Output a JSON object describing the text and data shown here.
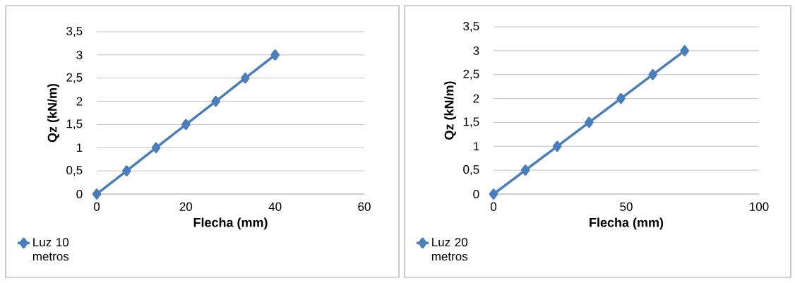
{
  "chart_data": [
    {
      "type": "line",
      "xlabel": "Flecha (mm)",
      "ylabel": "Qz (kN/m)",
      "x": [
        0,
        6.7,
        13.3,
        20,
        26.7,
        33.3,
        40
      ],
      "series": [
        {
          "name": "Luz 10 metros",
          "color": "#4a7ebb",
          "values": [
            0,
            0.5,
            1,
            1.5,
            2,
            2.5,
            3
          ]
        }
      ],
      "marker": "diamond",
      "line_style": "solid",
      "grid": "y",
      "legend": "bottom left",
      "xlim": [
        0,
        60
      ],
      "xticks": [
        0,
        20,
        40,
        60
      ],
      "ylim": [
        0,
        3.5
      ],
      "yticks": [
        0,
        {
          "value": 0.5,
          "label": "0,5"
        },
        1,
        {
          "value": 1.5,
          "label": "1,5"
        },
        2,
        {
          "value": 2.5,
          "label": "2,5"
        },
        3,
        {
          "value": 3.5,
          "label": "3,5"
        }
      ]
    },
    {
      "type": "line",
      "xlabel": "Flecha (mm)",
      "ylabel": "Qz (kN/m)",
      "x": [
        0,
        12,
        24,
        36,
        48,
        60,
        72
      ],
      "series": [
        {
          "name": "Luz 20 metros",
          "color": "#4a7ebb",
          "values": [
            0,
            0.5,
            1,
            1.5,
            2,
            2.5,
            3
          ]
        }
      ],
      "marker": "diamond",
      "line_style": "solid",
      "grid": "y",
      "legend": "bottom left",
      "xlim": [
        0,
        100
      ],
      "xticks": [
        0,
        50,
        100
      ],
      "ylim": [
        0,
        3.5
      ],
      "yticks": [
        0,
        {
          "value": 0.5,
          "label": "0,5"
        },
        1,
        {
          "value": 1.5,
          "label": "1,5"
        },
        2,
        {
          "value": 2.5,
          "label": "2,5"
        },
        3,
        {
          "value": 3.5,
          "label": "3,5"
        }
      ]
    }
  ]
}
